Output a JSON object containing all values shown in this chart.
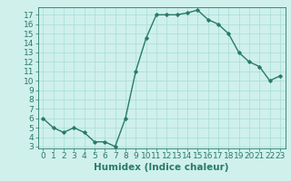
{
  "xlabel": "Humidex (Indice chaleur)",
  "ylabel": "",
  "x": [
    0,
    1,
    2,
    3,
    4,
    5,
    6,
    7,
    8,
    9,
    10,
    11,
    12,
    13,
    14,
    15,
    16,
    17,
    18,
    19,
    20,
    21,
    22,
    23
  ],
  "y": [
    6,
    5,
    4.5,
    5,
    4.5,
    3.5,
    3.5,
    3,
    6,
    11,
    14.5,
    17,
    17,
    17,
    17.2,
    17.5,
    16.5,
    16,
    15,
    13,
    12,
    11.5,
    10,
    10.5
  ],
  "line_color": "#2a7a68",
  "marker": "D",
  "marker_size": 1.8,
  "bg_color": "#cff0eb",
  "grid_color": "#a8ddd6",
  "ylim_min": 3,
  "ylim_max": 17.8,
  "xlim_min": -0.5,
  "xlim_max": 23.5,
  "yticks": [
    3,
    4,
    5,
    6,
    7,
    8,
    9,
    10,
    11,
    12,
    13,
    14,
    15,
    16,
    17
  ],
  "xticks": [
    0,
    1,
    2,
    3,
    4,
    5,
    6,
    7,
    8,
    9,
    10,
    11,
    12,
    13,
    14,
    15,
    16,
    17,
    18,
    19,
    20,
    21,
    22,
    23
  ],
  "tick_color": "#2a7a68",
  "label_color": "#2a7a68",
  "xlabel_fontsize": 7.5,
  "tick_fontsize": 6.5,
  "line_width": 1.0
}
